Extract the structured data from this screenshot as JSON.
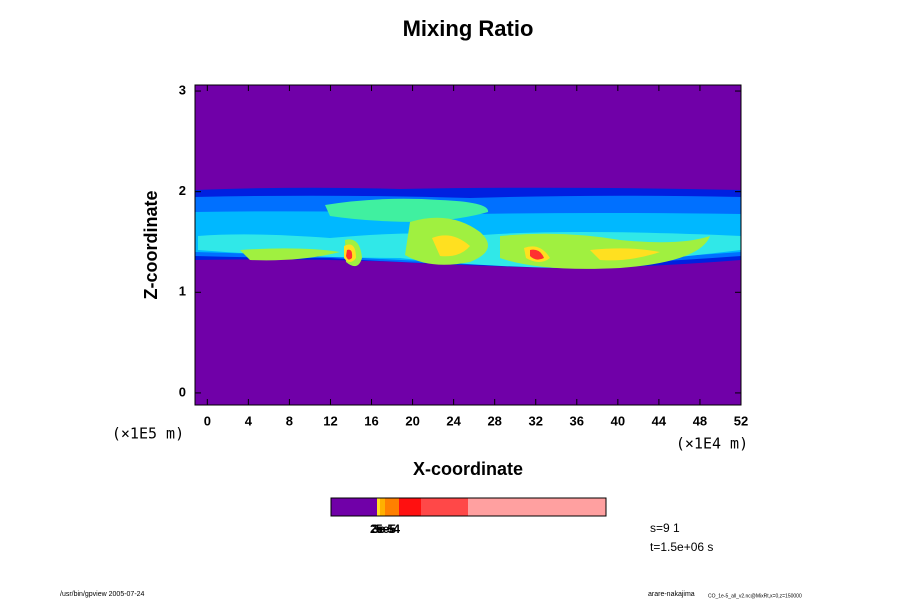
{
  "chart_data": {
    "type": "heatmap",
    "title": "Mixing Ratio",
    "xlabel": "X-coordinate",
    "ylabel": "Z-coordinate",
    "x_unit_label": "(×1E4 m)",
    "y_unit_label": "(×1E5 m)",
    "xlim": [
      -1.2,
      52
    ],
    "ylim": [
      -0.12,
      3.06
    ],
    "xticks": [
      0,
      4,
      8,
      12,
      16,
      20,
      24,
      28,
      32,
      36,
      40,
      44,
      48,
      52
    ],
    "yticks": [
      0,
      1,
      2,
      3
    ],
    "colorbar_labels": [
      "2e-5",
      "3e-5",
      "5e-4"
    ],
    "annotations": [
      "s=9 1",
      "t=1.5e+06 s"
    ],
    "footer_left": "/usr/bin/gpview 2005-07-24",
    "footer_right": "arare-nakajima",
    "footer_right_detail": "CO_1e-5_all_v2.nc@MixRt,x=0,z=150000"
  }
}
